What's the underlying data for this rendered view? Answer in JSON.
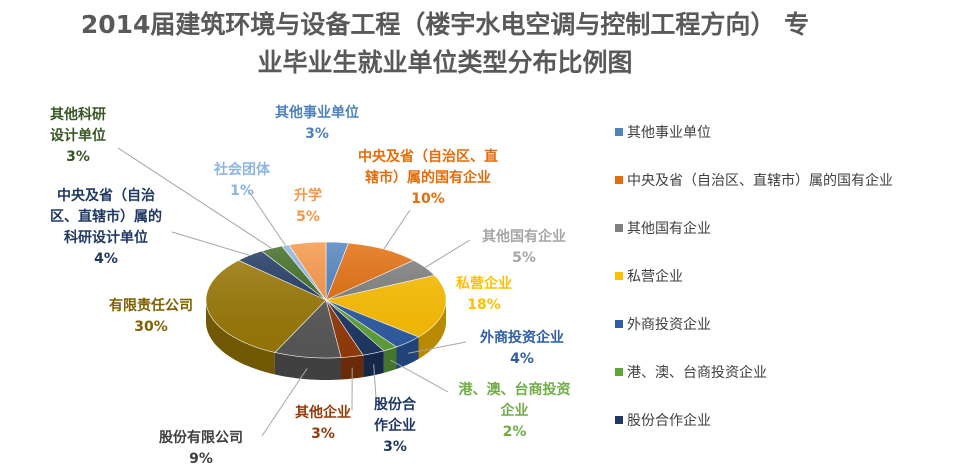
{
  "chart_data": {
    "type": "pie",
    "title_line1": "2014届建筑环境与设备工程（楼宇水电空调与控制工程方向） 专",
    "title_line2": "业毕业生就业单位类型分布比例图",
    "series": [
      {
        "name": "其他事业单位",
        "label": "其他事业单位",
        "pct_label": "3%",
        "value": 3,
        "color": "#4F81BD",
        "label_color": "#4F81BD"
      },
      {
        "name": "中央及省（自治区、直辖市）属的国有企业",
        "label": "中央及省（自治区、直\n辖市）属的国有企业",
        "pct_label": "10%",
        "value": 10,
        "color": "#E46C0A",
        "label_color": "#E46C0A"
      },
      {
        "name": "其他国有企业",
        "label": "其他国有企业",
        "pct_label": "5%",
        "value": 5,
        "color": "#7F7F7F",
        "label_color": "#A6A6A6"
      },
      {
        "name": "私营企业",
        "label": "私营企业",
        "pct_label": "18%",
        "value": 18,
        "color": "#FFC000",
        "label_color": "#FFC000"
      },
      {
        "name": "外商投资企业",
        "label": "外商投资企业",
        "pct_label": "4%",
        "value": 4,
        "color": "#2E5DA6",
        "label_color": "#2E5DA6"
      },
      {
        "name": "港、澳、台商投资企业",
        "label": "港、澳、台商投资\n企业",
        "pct_label": "2%",
        "value": 2,
        "color": "#5FA33A",
        "label_color": "#70AD47"
      },
      {
        "name": "股份合作企业",
        "label": "股份合\n作企业",
        "pct_label": "3%",
        "value": 3,
        "color": "#1F3864",
        "label_color": "#1F3864"
      },
      {
        "name": "其他企业",
        "label": "其他企业",
        "pct_label": "3%",
        "value": 3,
        "color": "#953B0B",
        "label_color": "#953B0B"
      },
      {
        "name": "股份有限公司",
        "label": "股份有限公司",
        "pct_label": "9%",
        "value": 9,
        "color": "#595959",
        "label_color": "#404040"
      },
      {
        "name": "有限责任公司",
        "label": "有限责任公司",
        "pct_label": "30%",
        "value": 30,
        "color": "#9C7A06",
        "label_color": "#7F6000"
      },
      {
        "name": "中央及省（自治区、直辖市）属的科研设计单位",
        "label": "中央及省（自治\n区、直辖市）属的\n科研设计单位",
        "pct_label": "4%",
        "value": 4,
        "color": "#1F3864",
        "label_color": "#1F3864"
      },
      {
        "name": "其他科研设计单位",
        "label": "其他科研\n设计单位",
        "pct_label": "3%",
        "value": 3,
        "color": "#3E6B22",
        "label_color": "#375623"
      },
      {
        "name": "社会团体",
        "label": "社会团体",
        "pct_label": "1%",
        "value": 1,
        "color": "#8EB4E3",
        "label_color": "#8EB4E3"
      },
      {
        "name": "升学",
        "label": "升学",
        "pct_label": "5%",
        "value": 5,
        "color": "#F79646",
        "label_color": "#F79646"
      }
    ],
    "legend_entries": [
      "其他事业单位",
      "中央及省（自治区、直辖市）属的国有企业",
      "其他国有企业",
      "私营企业",
      "外商投资企业",
      "港、澳、台商投资企业",
      "股份合作企业"
    ],
    "legend_placement": "right"
  }
}
